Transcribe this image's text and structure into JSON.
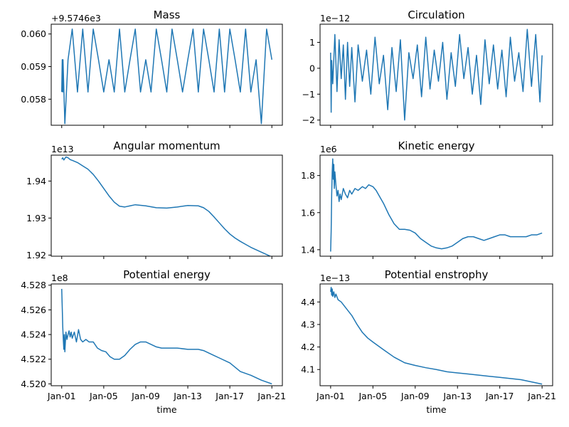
{
  "figure": {
    "x_tick_labels": [
      "Jan-01",
      "Jan-05",
      "Jan-09",
      "Jan-13",
      "Jan-17",
      "Jan-21"
    ],
    "xlabel": "time",
    "series_color": "#1f77b4"
  },
  "chart_data": [
    {
      "type": "line",
      "title": "Mass",
      "offset_label": "+9.5746e3",
      "ylim": [
        0.0572,
        0.0603
      ],
      "yticks": [
        0.058,
        0.059,
        0.06
      ],
      "ytick_labels": [
        "0.058",
        "0.059",
        "0.060"
      ],
      "x": [
        0,
        0.05,
        0.1,
        0.12,
        0.3,
        0.6,
        1,
        1.5,
        2,
        2.5,
        3,
        3.5,
        4,
        4.5,
        5,
        5.5,
        6,
        6.5,
        7,
        7.5,
        8,
        8.5,
        9,
        9.5,
        10,
        10.5,
        11,
        11.5,
        12,
        12.5,
        13,
        13.5,
        14,
        14.5,
        15,
        15.5,
        16,
        16.5,
        17,
        17.5,
        18,
        18.5,
        19,
        19.5,
        20
      ],
      "y": [
        0.05822,
        0.05921,
        0.05822,
        0.05921,
        0.05725,
        0.05921,
        0.06015,
        0.05822,
        0.06015,
        0.05822,
        0.06015,
        0.05921,
        0.05822,
        0.05921,
        0.05822,
        0.06015,
        0.05822,
        0.05921,
        0.06015,
        0.05822,
        0.05921,
        0.05822,
        0.06015,
        0.05921,
        0.05822,
        0.06015,
        0.05921,
        0.05822,
        0.05921,
        0.06015,
        0.05822,
        0.06015,
        0.05921,
        0.05822,
        0.06015,
        0.05822,
        0.06015,
        0.05921,
        0.05822,
        0.06015,
        0.05822,
        0.05921,
        0.05725,
        0.06015,
        0.05921
      ]
    },
    {
      "type": "line",
      "title": "Circulation",
      "offset_label": "1e−12",
      "ylim": [
        -2.2,
        1.7
      ],
      "yticks": [
        -2,
        -1,
        0,
        1
      ],
      "ytick_labels": [
        "−2",
        "−1",
        "0",
        "1"
      ],
      "x": [
        0,
        0.05,
        0.1,
        0.2,
        0.4,
        0.6,
        0.8,
        1.0,
        1.2,
        1.4,
        1.6,
        1.8,
        2.0,
        2.3,
        2.6,
        3.0,
        3.4,
        3.8,
        4.2,
        4.6,
        5.0,
        5.4,
        5.8,
        6.2,
        6.6,
        7.0,
        7.4,
        7.8,
        8.2,
        8.6,
        9.0,
        9.4,
        9.8,
        10.2,
        10.6,
        11.0,
        11.4,
        11.8,
        12.2,
        12.6,
        13.0,
        13.4,
        13.8,
        14.2,
        14.6,
        15.0,
        15.4,
        15.8,
        16.2,
        16.6,
        17.0,
        17.4,
        17.8,
        18.2,
        18.6,
        19.0,
        19.4,
        19.8,
        20
      ],
      "y": [
        0.6,
        -1.7,
        0.3,
        -0.6,
        1.3,
        -0.9,
        1.1,
        -0.4,
        0.9,
        -1.2,
        1.0,
        -0.7,
        0.8,
        -1.3,
        0.9,
        -0.5,
        0.7,
        -1.0,
        1.2,
        -0.6,
        0.5,
        -1.6,
        0.8,
        -0.9,
        1.1,
        -2.0,
        0.6,
        -0.4,
        0.9,
        -1.1,
        1.2,
        -0.8,
        0.7,
        -0.5,
        1.0,
        -1.2,
        0.6,
        -0.7,
        1.3,
        -0.4,
        0.8,
        -1.0,
        0.5,
        -1.4,
        1.1,
        -0.6,
        0.9,
        -0.8,
        0.7,
        -1.1,
        1.2,
        -0.5,
        0.6,
        -0.9,
        1.5,
        -0.7,
        1.3,
        -1.3,
        0.5
      ]
    },
    {
      "type": "line",
      "title": "Angular momentum",
      "offset_label": "1e13",
      "ylim": [
        1.9197,
        1.947
      ],
      "yticks": [
        1.92,
        1.93,
        1.94
      ],
      "ytick_labels": [
        "1.92",
        "1.93",
        "1.94"
      ],
      "x": [
        0,
        0.1,
        0.2,
        0.4,
        0.6,
        0.8,
        1.0,
        1.5,
        2.0,
        2.5,
        3.0,
        3.5,
        4.0,
        4.5,
        5.0,
        5.5,
        6.0,
        6.5,
        7.0,
        8.0,
        9.0,
        10.0,
        11.0,
        12.0,
        13.0,
        13.5,
        14.0,
        14.5,
        15.0,
        15.5,
        16.0,
        16.5,
        17.0,
        17.5,
        18.0,
        19.0,
        20.0
      ],
      "y": [
        1.9459,
        1.9463,
        1.9457,
        1.9465,
        1.9463,
        1.9458,
        1.9456,
        1.945,
        1.9441,
        1.9432,
        1.9418,
        1.94,
        1.938,
        1.936,
        1.9343,
        1.9332,
        1.933,
        1.9333,
        1.9336,
        1.9333,
        1.9328,
        1.9327,
        1.933,
        1.9334,
        1.9333,
        1.9328,
        1.9318,
        1.9303,
        1.9287,
        1.9271,
        1.9257,
        1.9246,
        1.9237,
        1.9229,
        1.9221,
        1.9208,
        1.9195
      ]
    },
    {
      "type": "line",
      "title": "Kinetic energy",
      "offset_label": "1e6",
      "ylim": [
        1.365,
        1.91
      ],
      "yticks": [
        1.4,
        1.6,
        1.8
      ],
      "ytick_labels": [
        "1.4",
        "1.6",
        "1.8"
      ],
      "x": [
        0,
        0.05,
        0.1,
        0.15,
        0.2,
        0.25,
        0.3,
        0.35,
        0.4,
        0.5,
        0.6,
        0.7,
        0.8,
        0.9,
        1.0,
        1.2,
        1.4,
        1.6,
        1.8,
        2.0,
        2.3,
        2.6,
        3.0,
        3.3,
        3.6,
        4.0,
        4.3,
        4.6,
        5.0,
        5.5,
        6.0,
        6.5,
        7.0,
        7.5,
        8.0,
        8.5,
        9.0,
        9.5,
        10.0,
        10.5,
        11.0,
        11.5,
        12.0,
        12.5,
        13.0,
        13.5,
        14.0,
        14.5,
        15.0,
        15.5,
        16.0,
        16.5,
        17.0,
        17.5,
        18.0,
        18.5,
        19.0,
        19.5,
        20.0
      ],
      "y": [
        1.39,
        1.5,
        1.7,
        1.82,
        1.89,
        1.78,
        1.86,
        1.73,
        1.82,
        1.75,
        1.69,
        1.72,
        1.66,
        1.7,
        1.67,
        1.73,
        1.7,
        1.68,
        1.72,
        1.7,
        1.73,
        1.72,
        1.74,
        1.73,
        1.75,
        1.74,
        1.72,
        1.69,
        1.65,
        1.59,
        1.54,
        1.51,
        1.51,
        1.505,
        1.49,
        1.46,
        1.44,
        1.42,
        1.41,
        1.405,
        1.41,
        1.42,
        1.44,
        1.46,
        1.47,
        1.47,
        1.46,
        1.45,
        1.46,
        1.47,
        1.48,
        1.48,
        1.47,
        1.47,
        1.47,
        1.47,
        1.48,
        1.48,
        1.49
      ]
    },
    {
      "type": "line",
      "title": "Potential energy",
      "offset_label": "1e8",
      "ylim": [
        4.51985,
        4.5281
      ],
      "yticks": [
        4.52,
        4.522,
        4.524,
        4.526,
        4.528
      ],
      "ytick_labels": [
        "4.520",
        "4.522",
        "4.524",
        "4.526",
        "4.528"
      ],
      "x": [
        0,
        0.05,
        0.1,
        0.15,
        0.2,
        0.25,
        0.3,
        0.4,
        0.5,
        0.6,
        0.7,
        0.8,
        0.9,
        1.0,
        1.2,
        1.4,
        1.6,
        1.8,
        2.0,
        2.3,
        2.6,
        3.0,
        3.4,
        3.8,
        4.2,
        4.6,
        5.0,
        5.5,
        6.0,
        6.5,
        7.0,
        7.5,
        8.0,
        8.5,
        9.0,
        9.5,
        10.0,
        11.0,
        12.0,
        13.0,
        13.5,
        14.0,
        14.5,
        15.0,
        16.0,
        17.0,
        18.0,
        19.0,
        20.0
      ],
      "y": [
        4.5277,
        4.5262,
        4.5246,
        4.5236,
        4.5228,
        4.524,
        4.5226,
        4.5242,
        4.5236,
        4.524,
        4.5243,
        4.5238,
        4.5242,
        4.5237,
        4.5242,
        4.5234,
        4.5244,
        4.5236,
        4.5234,
        4.5236,
        4.5234,
        4.5234,
        4.5229,
        4.5227,
        4.5226,
        4.5222,
        4.522,
        4.522,
        4.5223,
        4.5228,
        4.5232,
        4.5234,
        4.5234,
        4.5232,
        4.523,
        4.5229,
        4.5229,
        4.5229,
        4.5228,
        4.5228,
        4.5227,
        4.5225,
        4.5223,
        4.5221,
        4.5217,
        4.521,
        4.5207,
        4.5203,
        4.52
      ]
    },
    {
      "type": "line",
      "title": "Potential enstrophy",
      "offset_label": "1e−13",
      "ylim": [
        4.028,
        4.48
      ],
      "yticks": [
        4.1,
        4.2,
        4.3,
        4.4
      ],
      "ytick_labels": [
        "4.1",
        "4.2",
        "4.3",
        "4.4"
      ],
      "x": [
        0,
        0.05,
        0.1,
        0.15,
        0.2,
        0.3,
        0.4,
        0.5,
        0.7,
        1.0,
        1.5,
        2.0,
        2.5,
        3.0,
        3.5,
        4.0,
        5.0,
        6.0,
        7.0,
        8.0,
        9.0,
        10.0,
        11.0,
        12.0,
        13.0,
        14.0,
        15.0,
        16.0,
        17.0,
        18.0,
        19.0,
        20.0
      ],
      "y": [
        4.445,
        4.465,
        4.43,
        4.458,
        4.425,
        4.445,
        4.42,
        4.435,
        4.41,
        4.4,
        4.37,
        4.34,
        4.3,
        4.265,
        4.24,
        4.222,
        4.188,
        4.155,
        4.13,
        4.118,
        4.108,
        4.1,
        4.09,
        4.085,
        4.08,
        4.075,
        4.07,
        4.065,
        4.06,
        4.055,
        4.045,
        4.035
      ]
    }
  ]
}
